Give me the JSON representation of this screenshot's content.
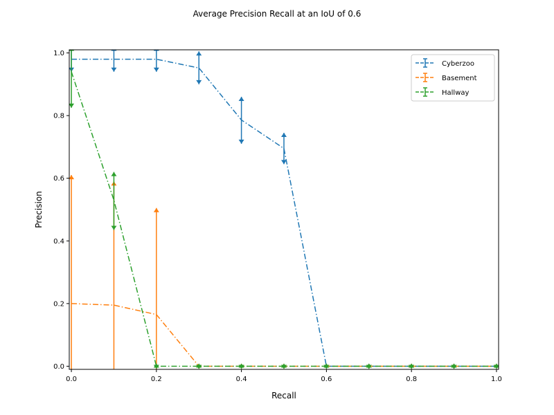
{
  "chart_data": {
    "type": "line",
    "title": "Average Precision Recall at an IoU of 0.6",
    "xlabel": "Recall",
    "ylabel": "Precision",
    "xlim": [
      -0.005,
      1.005
    ],
    "ylim": [
      -0.01,
      1.01
    ],
    "x_ticks": [
      "0.0",
      "0.2",
      "0.4",
      "0.6",
      "0.8",
      "1.0"
    ],
    "y_ticks": [
      "0.0",
      "0.2",
      "0.4",
      "0.6",
      "0.8",
      "1.0"
    ],
    "x_tick_values": [
      0,
      0.2,
      0.4,
      0.6,
      0.8,
      1.0
    ],
    "y_tick_values": [
      0,
      0.2,
      0.4,
      0.6,
      0.8,
      1.0
    ],
    "legend_position": "top-right",
    "grid": false,
    "x": [
      0.0,
      0.1,
      0.2,
      0.3,
      0.4,
      0.5,
      0.6,
      0.7,
      0.8,
      0.9,
      1.0
    ],
    "series": [
      {
        "name": "Cyberzoo",
        "color": "#1f77b4",
        "values": [
          0.98,
          0.98,
          0.98,
          0.952,
          0.786,
          0.695,
          0.0,
          0.0,
          0.0,
          0.0,
          0.0
        ],
        "err_low": [
          0.94,
          0.94,
          0.94,
          0.9,
          0.71,
          0.645,
          0.0,
          0.0,
          0.0,
          0.0,
          0.0
        ],
        "err_high": [
          1.02,
          1.02,
          1.02,
          1.005,
          0.86,
          0.745,
          0.0,
          0.0,
          0.0,
          0.0,
          0.0
        ]
      },
      {
        "name": "Basement",
        "color": "#ff7f0e",
        "values": [
          0.2,
          0.195,
          0.165,
          0.0,
          0.0,
          0.0,
          0.0,
          0.0,
          0.0,
          0.0,
          0.0
        ],
        "err_low": [
          -0.2,
          -0.2,
          -0.2,
          0.0,
          0.0,
          0.0,
          0.0,
          0.0,
          0.0,
          0.0,
          0.0
        ],
        "err_high": [
          0.61,
          0.59,
          0.505,
          0.0,
          0.0,
          0.0,
          0.0,
          0.0,
          0.0,
          0.0,
          0.0
        ]
      },
      {
        "name": "Hallway",
        "color": "#2ca02c",
        "values": [
          0.94,
          0.53,
          0.0,
          0.0,
          0.0,
          0.0,
          0.0,
          0.0,
          0.0,
          0.0,
          0.0
        ],
        "err_low": [
          0.825,
          0.435,
          0.0,
          0.0,
          0.0,
          0.0,
          0.0,
          0.0,
          0.0,
          0.0,
          0.0
        ],
        "err_high": [
          1.02,
          0.62,
          0.0,
          0.0,
          0.0,
          0.0,
          0.0,
          0.0,
          0.0,
          0.0,
          0.0
        ]
      }
    ]
  }
}
